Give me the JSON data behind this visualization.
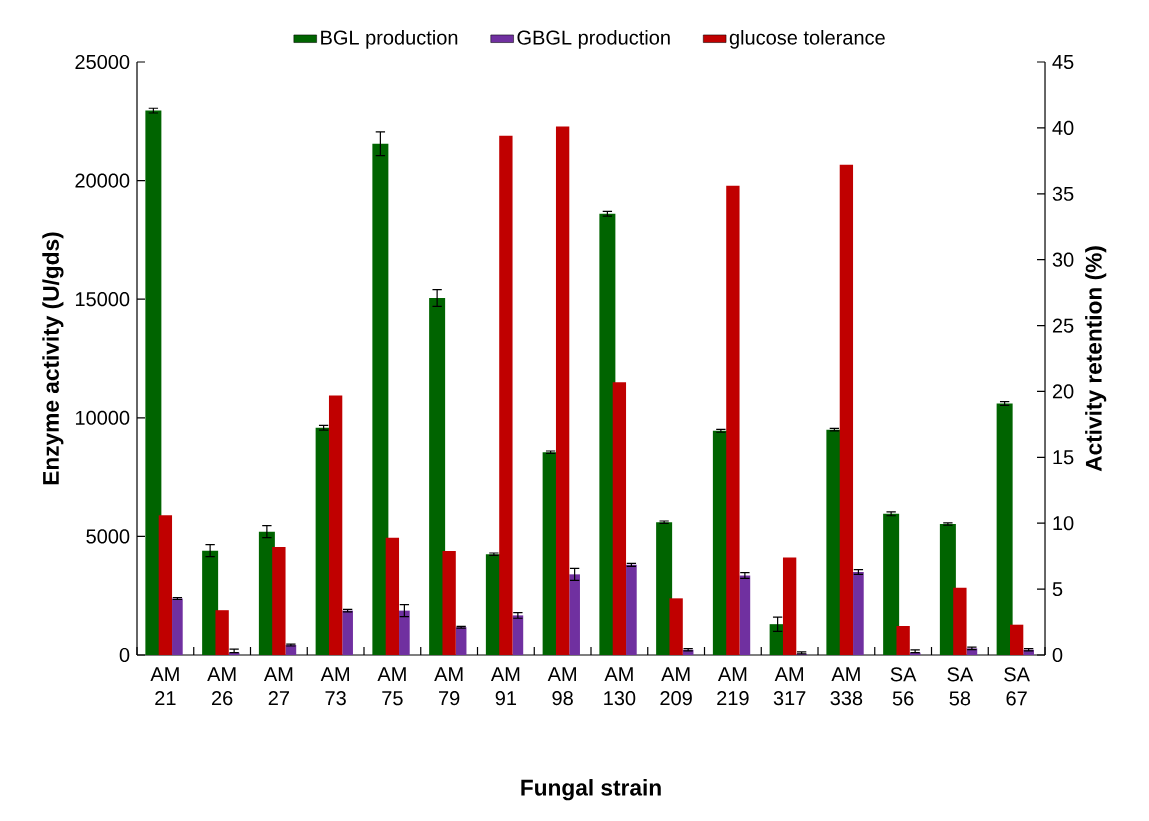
{
  "chart_data": {
    "type": "bar",
    "xlabel": "Fungal strain",
    "ylabel": "Enzyme activity (U/gds)",
    "y2label": "Activity retention (%)",
    "categories": [
      "AM 21",
      "AM 26",
      "AM 27",
      "AM 73",
      "AM 75",
      "AM 79",
      "AM 91",
      "AM 98",
      "AM 130",
      "AM 209",
      "AM 219",
      "AM 317",
      "AM 338",
      "SA 56",
      "SA 58",
      "SA 67"
    ],
    "series": [
      {
        "name": "BGL production",
        "color": "#006400",
        "axis": "y",
        "values": [
          22950,
          4400,
          5200,
          9580,
          21550,
          15050,
          4250,
          8550,
          18600,
          5600,
          9450,
          1300,
          9500,
          5950,
          5520,
          10600
        ],
        "errors": [
          100,
          250,
          250,
          100,
          500,
          350,
          50,
          50,
          100,
          50,
          60,
          300,
          50,
          80,
          50,
          80
        ]
      },
      {
        "name": "GBGL production",
        "color": "#7030a0",
        "axis": "y",
        "values": [
          2380,
          100,
          420,
          1870,
          1870,
          1170,
          1670,
          3400,
          3800,
          220,
          3350,
          50,
          3500,
          100,
          280,
          220
        ],
        "errors": [
          40,
          [
            100,
            250
          ],
          40,
          50,
          250,
          40,
          120,
          250,
          60,
          50,
          120,
          [
            50,
            130
          ],
          100,
          [
            100,
            220
          ],
          50,
          50
        ]
      },
      {
        "name": "glucose tolerance",
        "color": "#c00000",
        "axis": "y2",
        "values": [
          10.6,
          3.4,
          8.2,
          19.7,
          8.9,
          7.9,
          39.4,
          40.1,
          20.7,
          4.3,
          35.6,
          7.4,
          37.2,
          2.2,
          5.1,
          2.3
        ]
      }
    ],
    "ylim": [
      0,
      25000
    ],
    "yticks": [
      0,
      5000,
      10000,
      15000,
      20000,
      25000
    ],
    "y2lim": [
      0,
      45
    ],
    "y2ticks": [
      0,
      5,
      10,
      15,
      20,
      25,
      30,
      35,
      40,
      45
    ],
    "legend": "top"
  }
}
